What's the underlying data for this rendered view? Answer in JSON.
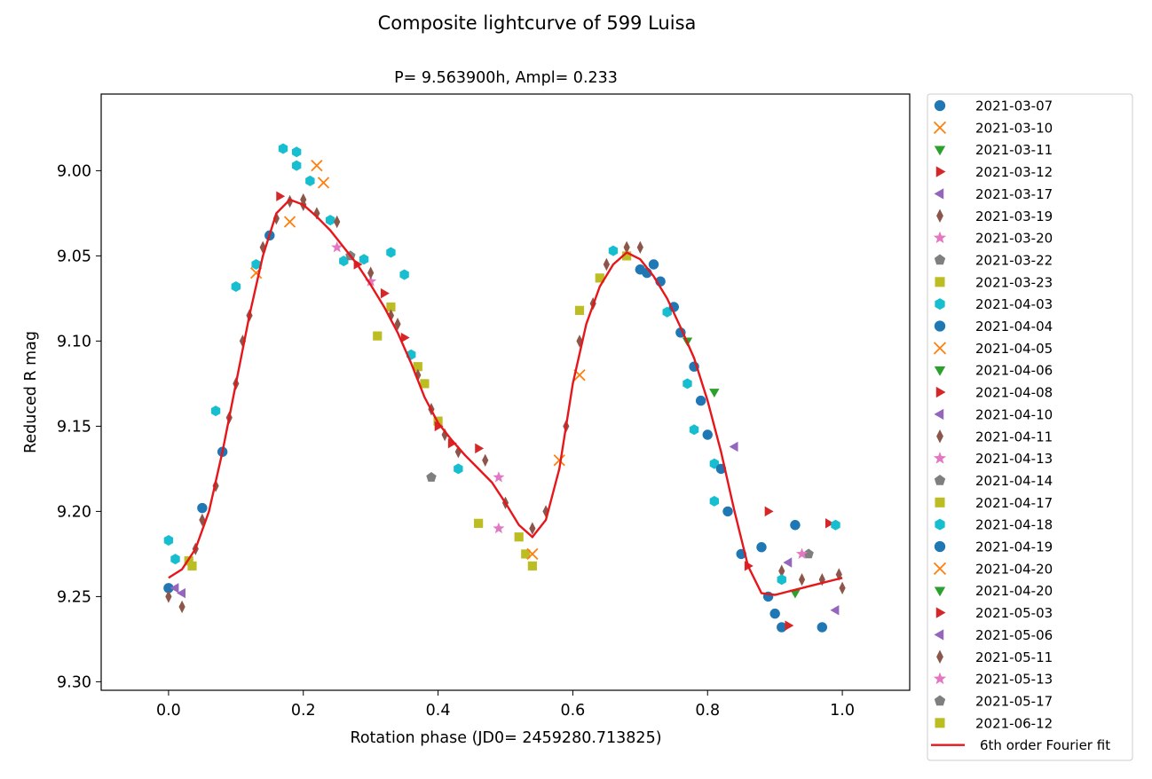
{
  "chart_data": {
    "type": "scatter",
    "title": "Composite lightcurve of 599 Luisa",
    "subtitle": "P=  9.563900h, Ampl=  0.233",
    "xlabel": "Rotation phase (JD0= 2459280.713825)",
    "ylabel": "Reduced R mag",
    "xlim": [
      -0.1,
      1.1
    ],
    "ylim": [
      9.305,
      8.955
    ],
    "y_inverted": true,
    "xticks": [
      0.0,
      0.2,
      0.4,
      0.6,
      0.8,
      1.0
    ],
    "xtick_labels": [
      "0.0",
      "0.2",
      "0.4",
      "0.6",
      "0.8",
      "1.0"
    ],
    "yticks": [
      9.0,
      9.05,
      9.1,
      9.15,
      9.2,
      9.25,
      9.3
    ],
    "ytick_labels": [
      "9.00",
      "9.05",
      "9.10",
      "9.15",
      "9.20",
      "9.25",
      "9.30"
    ],
    "legend_position": "outside-right",
    "fit": {
      "name": "6th order Fourier fit",
      "color": "#e6161b",
      "x": [
        0.0,
        0.02,
        0.04,
        0.06,
        0.08,
        0.1,
        0.12,
        0.14,
        0.16,
        0.18,
        0.2,
        0.22,
        0.24,
        0.26,
        0.28,
        0.3,
        0.32,
        0.34,
        0.36,
        0.38,
        0.4,
        0.42,
        0.44,
        0.46,
        0.48,
        0.5,
        0.52,
        0.54,
        0.56,
        0.58,
        0.6,
        0.62,
        0.64,
        0.66,
        0.68,
        0.7,
        0.72,
        0.74,
        0.76,
        0.78,
        0.8,
        0.82,
        0.84,
        0.86,
        0.88,
        0.9,
        0.92,
        0.94,
        0.96,
        0.98,
        1.0
      ],
      "y": [
        9.239,
        9.234,
        9.222,
        9.2,
        9.165,
        9.125,
        9.085,
        9.05,
        9.025,
        9.017,
        9.02,
        9.027,
        9.035,
        9.045,
        9.055,
        9.067,
        9.08,
        9.095,
        9.113,
        9.133,
        9.148,
        9.158,
        9.167,
        9.175,
        9.183,
        9.195,
        9.208,
        9.215,
        9.205,
        9.175,
        9.125,
        9.09,
        9.068,
        9.055,
        9.048,
        9.052,
        9.062,
        9.075,
        9.092,
        9.11,
        9.135,
        9.165,
        9.2,
        9.232,
        9.248,
        9.249,
        9.247,
        9.245,
        9.243,
        9.241,
        9.239
      ]
    },
    "series": [
      {
        "name": "2021-03-07",
        "marker": "circle",
        "color": "#1f77b4"
      },
      {
        "name": "2021-03-10",
        "marker": "x",
        "color": "#ff7f0e"
      },
      {
        "name": "2021-03-11",
        "marker": "triangle-down",
        "color": "#2ca02c"
      },
      {
        "name": "2021-03-12",
        "marker": "triangle-right",
        "color": "#d62728"
      },
      {
        "name": "2021-03-17",
        "marker": "triangle-left",
        "color": "#9467bd"
      },
      {
        "name": "2021-03-19",
        "marker": "diamond",
        "color": "#8c564b"
      },
      {
        "name": "2021-03-20",
        "marker": "star",
        "color": "#e377c2"
      },
      {
        "name": "2021-03-22",
        "marker": "pentagon",
        "color": "#7f7f7f"
      },
      {
        "name": "2021-03-23",
        "marker": "square",
        "color": "#bcbd22"
      },
      {
        "name": "2021-04-03",
        "marker": "hexagon",
        "color": "#17becf"
      },
      {
        "name": "2021-04-04",
        "marker": "circle",
        "color": "#1f77b4"
      },
      {
        "name": "2021-04-05",
        "marker": "x",
        "color": "#ff7f0e"
      },
      {
        "name": "2021-04-06",
        "marker": "triangle-down",
        "color": "#2ca02c"
      },
      {
        "name": "2021-04-08",
        "marker": "triangle-right",
        "color": "#d62728"
      },
      {
        "name": "2021-04-10",
        "marker": "triangle-left",
        "color": "#9467bd"
      },
      {
        "name": "2021-04-11",
        "marker": "diamond",
        "color": "#8c564b"
      },
      {
        "name": "2021-04-13",
        "marker": "star",
        "color": "#e377c2"
      },
      {
        "name": "2021-04-14",
        "marker": "pentagon",
        "color": "#7f7f7f"
      },
      {
        "name": "2021-04-17",
        "marker": "square",
        "color": "#bcbd22"
      },
      {
        "name": "2021-04-18",
        "marker": "hexagon",
        "color": "#17becf"
      },
      {
        "name": "2021-04-19",
        "marker": "circle",
        "color": "#1f77b4"
      },
      {
        "name": "2021-04-20",
        "marker": "x",
        "color": "#ff7f0e"
      },
      {
        "name": "2021-04-20",
        "marker": "triangle-down",
        "color": "#2ca02c"
      },
      {
        "name": "2021-05-03",
        "marker": "triangle-right",
        "color": "#d62728"
      },
      {
        "name": "2021-05-06",
        "marker": "triangle-left",
        "color": "#9467bd"
      },
      {
        "name": "2021-05-11",
        "marker": "diamond",
        "color": "#8c564b"
      },
      {
        "name": "2021-05-13",
        "marker": "star",
        "color": "#e377c2"
      },
      {
        "name": "2021-05-17",
        "marker": "pentagon",
        "color": "#7f7f7f"
      },
      {
        "name": "2021-06-12",
        "marker": "square",
        "color": "#bcbd22"
      }
    ],
    "points": [
      {
        "s": 9,
        "x": 0.0,
        "y": 9.217
      },
      {
        "s": 0,
        "x": 0.0,
        "y": 9.245
      },
      {
        "s": 5,
        "x": 0.0,
        "y": 9.25
      },
      {
        "s": 4,
        "x": 0.01,
        "y": 9.245
      },
      {
        "s": 9,
        "x": 0.01,
        "y": 9.228
      },
      {
        "s": 5,
        "x": 0.02,
        "y": 9.256
      },
      {
        "s": 14,
        "x": 0.02,
        "y": 9.248
      },
      {
        "s": 8,
        "x": 0.03,
        "y": 9.229
      },
      {
        "s": 18,
        "x": 0.035,
        "y": 9.232
      },
      {
        "s": 25,
        "x": 0.04,
        "y": 9.222
      },
      {
        "s": 5,
        "x": 0.05,
        "y": 9.205
      },
      {
        "s": 0,
        "x": 0.05,
        "y": 9.198
      },
      {
        "s": 9,
        "x": 0.07,
        "y": 9.141
      },
      {
        "s": 25,
        "x": 0.07,
        "y": 9.185
      },
      {
        "s": 0,
        "x": 0.08,
        "y": 9.165
      },
      {
        "s": 5,
        "x": 0.09,
        "y": 9.145
      },
      {
        "s": 5,
        "x": 0.1,
        "y": 9.125
      },
      {
        "s": 9,
        "x": 0.1,
        "y": 9.068
      },
      {
        "s": 25,
        "x": 0.11,
        "y": 9.1
      },
      {
        "s": 5,
        "x": 0.12,
        "y": 9.085
      },
      {
        "s": 9,
        "x": 0.13,
        "y": 9.055
      },
      {
        "s": 1,
        "x": 0.13,
        "y": 9.06
      },
      {
        "s": 5,
        "x": 0.14,
        "y": 9.045
      },
      {
        "s": 0,
        "x": 0.15,
        "y": 9.038
      },
      {
        "s": 5,
        "x": 0.16,
        "y": 9.028
      },
      {
        "s": 3,
        "x": 0.165,
        "y": 9.015
      },
      {
        "s": 9,
        "x": 0.17,
        "y": 8.987
      },
      {
        "s": 5,
        "x": 0.18,
        "y": 9.018
      },
      {
        "s": 1,
        "x": 0.18,
        "y": 9.03
      },
      {
        "s": 9,
        "x": 0.19,
        "y": 8.989
      },
      {
        "s": 9,
        "x": 0.19,
        "y": 8.997
      },
      {
        "s": 5,
        "x": 0.2,
        "y": 9.017
      },
      {
        "s": 25,
        "x": 0.2,
        "y": 9.02
      },
      {
        "s": 9,
        "x": 0.21,
        "y": 9.006
      },
      {
        "s": 1,
        "x": 0.22,
        "y": 8.997
      },
      {
        "s": 5,
        "x": 0.22,
        "y": 9.025
      },
      {
        "s": 11,
        "x": 0.23,
        "y": 9.007
      },
      {
        "s": 9,
        "x": 0.24,
        "y": 9.029
      },
      {
        "s": 5,
        "x": 0.25,
        "y": 9.03
      },
      {
        "s": 6,
        "x": 0.25,
        "y": 9.045
      },
      {
        "s": 9,
        "x": 0.26,
        "y": 9.053
      },
      {
        "s": 7,
        "x": 0.27,
        "y": 9.05
      },
      {
        "s": 13,
        "x": 0.28,
        "y": 9.055
      },
      {
        "s": 9,
        "x": 0.29,
        "y": 9.052
      },
      {
        "s": 26,
        "x": 0.3,
        "y": 9.065
      },
      {
        "s": 5,
        "x": 0.3,
        "y": 9.06
      },
      {
        "s": 8,
        "x": 0.31,
        "y": 9.097
      },
      {
        "s": 23,
        "x": 0.32,
        "y": 9.072
      },
      {
        "s": 8,
        "x": 0.33,
        "y": 9.08
      },
      {
        "s": 5,
        "x": 0.33,
        "y": 9.085
      },
      {
        "s": 9,
        "x": 0.33,
        "y": 9.048
      },
      {
        "s": 25,
        "x": 0.34,
        "y": 9.09
      },
      {
        "s": 9,
        "x": 0.35,
        "y": 9.061
      },
      {
        "s": 13,
        "x": 0.35,
        "y": 9.098
      },
      {
        "s": 9,
        "x": 0.36,
        "y": 9.108
      },
      {
        "s": 8,
        "x": 0.37,
        "y": 9.115
      },
      {
        "s": 5,
        "x": 0.37,
        "y": 9.12
      },
      {
        "s": 18,
        "x": 0.38,
        "y": 9.125
      },
      {
        "s": 5,
        "x": 0.39,
        "y": 9.14
      },
      {
        "s": 8,
        "x": 0.4,
        "y": 9.147
      },
      {
        "s": 23,
        "x": 0.4,
        "y": 9.15
      },
      {
        "s": 7,
        "x": 0.39,
        "y": 9.18
      },
      {
        "s": 5,
        "x": 0.41,
        "y": 9.155
      },
      {
        "s": 13,
        "x": 0.42,
        "y": 9.16
      },
      {
        "s": 25,
        "x": 0.43,
        "y": 9.165
      },
      {
        "s": 9,
        "x": 0.43,
        "y": 9.175
      },
      {
        "s": 13,
        "x": 0.46,
        "y": 9.163
      },
      {
        "s": 25,
        "x": 0.47,
        "y": 9.17
      },
      {
        "s": 26,
        "x": 0.49,
        "y": 9.18
      },
      {
        "s": 8,
        "x": 0.46,
        "y": 9.207
      },
      {
        "s": 5,
        "x": 0.5,
        "y": 9.195
      },
      {
        "s": 26,
        "x": 0.49,
        "y": 9.21
      },
      {
        "s": 18,
        "x": 0.52,
        "y": 9.215
      },
      {
        "s": 8,
        "x": 0.53,
        "y": 9.225
      },
      {
        "s": 5,
        "x": 0.54,
        "y": 9.21
      },
      {
        "s": 21,
        "x": 0.54,
        "y": 9.225
      },
      {
        "s": 18,
        "x": 0.54,
        "y": 9.232
      },
      {
        "s": 5,
        "x": 0.56,
        "y": 9.2
      },
      {
        "s": 21,
        "x": 0.58,
        "y": 9.17
      },
      {
        "s": 5,
        "x": 0.59,
        "y": 9.15
      },
      {
        "s": 21,
        "x": 0.61,
        "y": 9.12
      },
      {
        "s": 5,
        "x": 0.61,
        "y": 9.1
      },
      {
        "s": 8,
        "x": 0.61,
        "y": 9.082
      },
      {
        "s": 5,
        "x": 0.63,
        "y": 9.078
      },
      {
        "s": 8,
        "x": 0.64,
        "y": 9.063
      },
      {
        "s": 5,
        "x": 0.65,
        "y": 9.055
      },
      {
        "s": 9,
        "x": 0.66,
        "y": 9.047
      },
      {
        "s": 5,
        "x": 0.68,
        "y": 9.045
      },
      {
        "s": 8,
        "x": 0.68,
        "y": 9.05
      },
      {
        "s": 5,
        "x": 0.7,
        "y": 9.045
      },
      {
        "s": 0,
        "x": 0.7,
        "y": 9.058
      },
      {
        "s": 0,
        "x": 0.71,
        "y": 9.06
      },
      {
        "s": 0,
        "x": 0.72,
        "y": 9.055
      },
      {
        "s": 0,
        "x": 0.73,
        "y": 9.065
      },
      {
        "s": 9,
        "x": 0.74,
        "y": 9.083
      },
      {
        "s": 0,
        "x": 0.75,
        "y": 9.08
      },
      {
        "s": 0,
        "x": 0.76,
        "y": 9.095
      },
      {
        "s": 2,
        "x": 0.77,
        "y": 9.1
      },
      {
        "s": 9,
        "x": 0.77,
        "y": 9.125
      },
      {
        "s": 0,
        "x": 0.78,
        "y": 9.115
      },
      {
        "s": 9,
        "x": 0.78,
        "y": 9.152
      },
      {
        "s": 0,
        "x": 0.79,
        "y": 9.135
      },
      {
        "s": 2,
        "x": 0.81,
        "y": 9.13
      },
      {
        "s": 0,
        "x": 0.8,
        "y": 9.155
      },
      {
        "s": 9,
        "x": 0.81,
        "y": 9.172
      },
      {
        "s": 0,
        "x": 0.82,
        "y": 9.175
      },
      {
        "s": 4,
        "x": 0.84,
        "y": 9.162
      },
      {
        "s": 9,
        "x": 0.81,
        "y": 9.194
      },
      {
        "s": 0,
        "x": 0.83,
        "y": 9.2
      },
      {
        "s": 0,
        "x": 0.85,
        "y": 9.225
      },
      {
        "s": 3,
        "x": 0.86,
        "y": 9.232
      },
      {
        "s": 3,
        "x": 0.89,
        "y": 9.2
      },
      {
        "s": 0,
        "x": 0.88,
        "y": 9.221
      },
      {
        "s": 0,
        "x": 0.89,
        "y": 9.25
      },
      {
        "s": 0,
        "x": 0.9,
        "y": 9.26
      },
      {
        "s": 0,
        "x": 0.91,
        "y": 9.268
      },
      {
        "s": 3,
        "x": 0.92,
        "y": 9.267
      },
      {
        "s": 5,
        "x": 0.91,
        "y": 9.235
      },
      {
        "s": 9,
        "x": 0.91,
        "y": 9.24
      },
      {
        "s": 24,
        "x": 0.92,
        "y": 9.23
      },
      {
        "s": 0,
        "x": 0.93,
        "y": 9.208
      },
      {
        "s": 12,
        "x": 0.93,
        "y": 9.248
      },
      {
        "s": 5,
        "x": 0.94,
        "y": 9.24
      },
      {
        "s": 17,
        "x": 0.95,
        "y": 9.225
      },
      {
        "s": 26,
        "x": 0.94,
        "y": 9.225
      },
      {
        "s": 0,
        "x": 0.97,
        "y": 9.268
      },
      {
        "s": 3,
        "x": 0.98,
        "y": 9.207
      },
      {
        "s": 9,
        "x": 0.99,
        "y": 9.208
      },
      {
        "s": 24,
        "x": 0.99,
        "y": 9.258
      },
      {
        "s": 5,
        "x": 0.97,
        "y": 9.24
      },
      {
        "s": 5,
        "x": 0.995,
        "y": 9.237
      },
      {
        "s": 5,
        "x": 1.0,
        "y": 9.245
      }
    ]
  }
}
